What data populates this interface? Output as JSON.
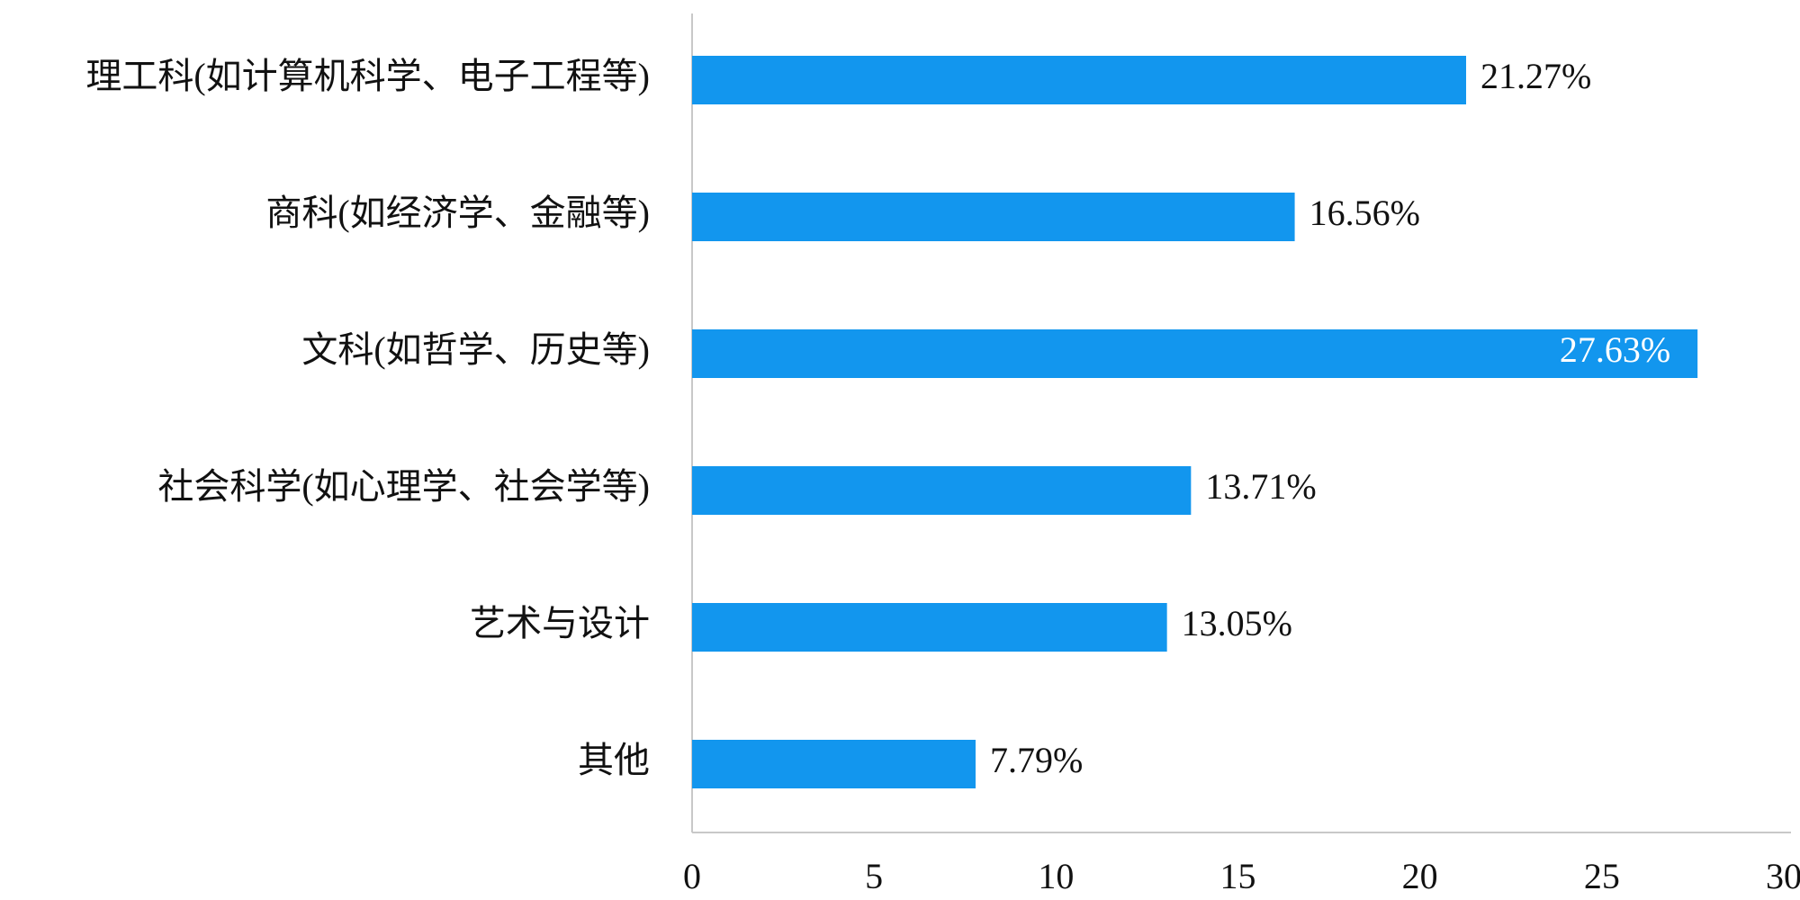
{
  "chart_data": {
    "type": "bar",
    "orientation": "horizontal",
    "categories": [
      "理工科(如计算机科学、电子工程等)",
      "商科(如经济学、金融等)",
      "文科(如哲学、历史等)",
      "社会科学(如心理学、社会学等)",
      "艺术与设计",
      "其他"
    ],
    "values": [
      21.27,
      16.56,
      27.63,
      13.71,
      13.05,
      7.79
    ],
    "value_labels": [
      "21.27%",
      "16.56%",
      "27.63%",
      "13.71%",
      "13.05%",
      "7.79%"
    ],
    "color": "#1296ee",
    "xlim": [
      0,
      30
    ],
    "xticks": [
      0,
      5,
      10,
      15,
      20,
      25,
      30
    ],
    "grid": false
  }
}
